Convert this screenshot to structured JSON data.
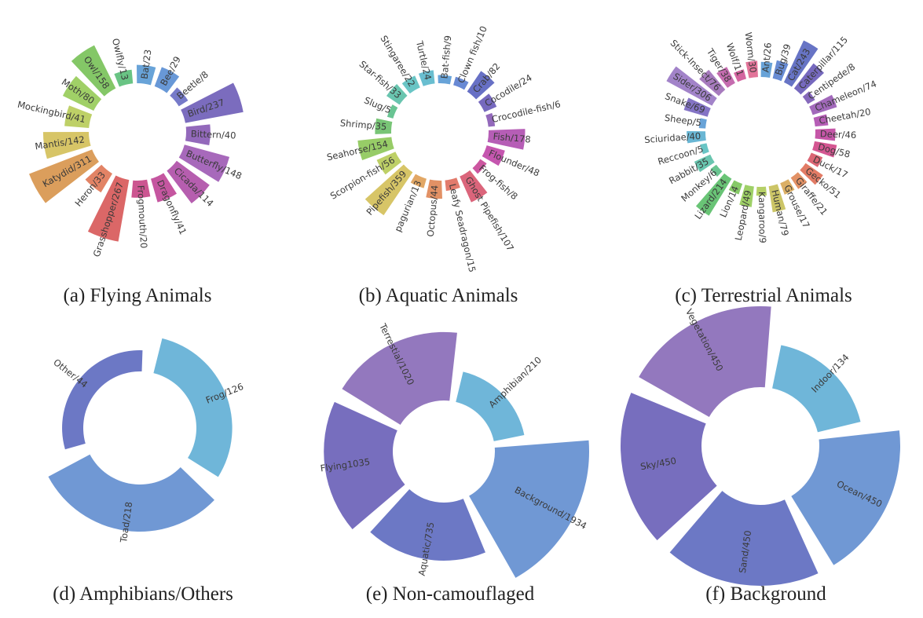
{
  "chart_data": [
    {
      "type": "polar-bar",
      "title": "(a) Flying Animals",
      "categories": [
        "Bat",
        "Bee",
        "Beetle",
        "Bird",
        "Bittern",
        "Butterfly",
        "Cicada",
        "Dragonfly",
        "Frogmouth",
        "Grasshopper",
        "Heron",
        "Katydid",
        "Mantis",
        "Mockingbird",
        "Moth",
        "Owl",
        "Owlfly"
      ],
      "values": [
        23,
        29,
        8,
        237,
        40,
        148,
        114,
        41,
        20,
        267,
        33,
        311,
        142,
        41,
        80,
        158,
        13
      ],
      "labels": [
        "Bat/23",
        "Bee/29",
        "Beetle/8",
        "Bird/237",
        "Bittern/40",
        "Butterfly/148",
        "Cicada/114",
        "Dragonfly/41",
        "Frogmouth/20",
        "Grasshopper/267",
        "Heron/33",
        "Katydid/311",
        "Mantis/142",
        "Mockingbird/41",
        "Moth/80",
        "Owl/158",
        "Owlfly/13"
      ],
      "colors": [
        "#5b9bd5",
        "#5b8fd4",
        "#6a6fc4",
        "#7060b8",
        "#8a5cb5",
        "#a05cb5",
        "#b050a8",
        "#c04898",
        "#c84888",
        "#d85a5a",
        "#e07858",
        "#d8964e",
        "#d4c05a",
        "#b8cc5a",
        "#98cc5a",
        "#7ac25a",
        "#5cbf7a"
      ]
    },
    {
      "type": "polar-bar",
      "title": "(b) Aquatic Animals",
      "categories": [
        "Bat-fish",
        "Clown fish",
        "Crab",
        "Cocodile",
        "Crocodile-fish",
        "Fish",
        "Flounder",
        "Frog-fish",
        "Ghost Pipefish",
        "Leafy Seadragon",
        "Octopus",
        "pagurian",
        "Pipefish",
        "Scorpion-fish",
        "Seahorse",
        "Shrimp",
        "Slug",
        "Star-fish",
        "Stingaree",
        "Turtle"
      ],
      "values": [
        9,
        10,
        82,
        24,
        6,
        178,
        48,
        8,
        107,
        15,
        44,
        13,
        359,
        56,
        154,
        35,
        5,
        33,
        22,
        24
      ],
      "labels": [
        "Bat-fish/9",
        "Clown fish/10",
        "Crab/82",
        "Cocodile/24",
        "Crocodile-fish/6",
        "Fish/178",
        "Flounder/48",
        "Frog-fish/8",
        "Ghost Pipefish/107",
        "Leafy Seadragon/15",
        "Octopus/44",
        "pagurian/13",
        "Pipefish/359",
        "Scorpion-fish/56",
        "Seahorse/154",
        "Shrimp/35",
        "Slug/5",
        "Star-fish/33",
        "Stingaree/22",
        "Turtle/24"
      ],
      "colors": [
        "#5b9bd5",
        "#5b7fd0",
        "#5a64c0",
        "#6a5cb8",
        "#8a5cb5",
        "#b050b0",
        "#c048a8",
        "#c84898",
        "#d85870",
        "#e07060",
        "#e08858",
        "#e0a058",
        "#d4c05a",
        "#b8cc5a",
        "#8ec85a",
        "#6cc06a",
        "#5cbf8a",
        "#5cc0a8",
        "#5cc0c0",
        "#5cb8cc"
      ]
    },
    {
      "type": "polar-bar",
      "title": "(c) Terrestrial Animals",
      "categories": [
        "Ant",
        "Bug",
        "Cat",
        "Caterpillar",
        "Centipede",
        "Chameleon",
        "Cheetah",
        "Deer",
        "Dog",
        "Duck",
        "Gecko",
        "Giraffe",
        "Grouse",
        "Human",
        "Kangaroo",
        "Leopard",
        "Lion",
        "Lizard",
        "Monkey",
        "Rabbit",
        "Reccoon",
        "Sciuridae",
        "Sheep",
        "Snake",
        "Sider",
        "Stick-Insect",
        "Tiger",
        "Wolf",
        "Worm"
      ],
      "values": [
        26,
        39,
        243,
        115,
        8,
        74,
        20,
        46,
        58,
        17,
        51,
        21,
        17,
        79,
        9,
        49,
        14,
        214,
        6,
        35,
        5,
        40,
        5,
        69,
        306,
        76,
        38,
        11,
        30
      ],
      "labels": [
        "Ant/26",
        "Bug/39",
        "Cat/243",
        "Caterpillar/115",
        "Centipede/8",
        "Chameleon/74",
        "Cheetah/20",
        "Deer/46",
        "Dog/58",
        "Duck/17",
        "Gecko/51",
        "Giraffe/21",
        "Grouse/17",
        "Human/79",
        "Kangaroo/9",
        "Leopard/49",
        "Lion/14",
        "Lizard/214",
        "Monkey/6",
        "Rabbit/35",
        "Reccoon/5",
        "Sciuridae/40",
        "Sheep/5",
        "Snake/69",
        "Sider/306",
        "Stick-Insect/76",
        "Tiger/38",
        "Wolf/11",
        "Worm/30"
      ],
      "colors": [
        "#5b9bd5",
        "#5b82d0",
        "#5a68c0",
        "#6a5cb8",
        "#7c5cb5",
        "#9a5cb5",
        "#b050b0",
        "#c048a0",
        "#d04888",
        "#d85868",
        "#e07058",
        "#e08858",
        "#d8a858",
        "#c8c05a",
        "#b0cc5a",
        "#96cc5a",
        "#7cc45a",
        "#5cbf6a",
        "#5cc088",
        "#5cc0a8",
        "#5cc0c0",
        "#5cb0d0",
        "#5b9bd5",
        "#7a68c0",
        "#9a78c4",
        "#a070b8",
        "#c060a8",
        "#d05898",
        "#e06890"
      ]
    },
    {
      "type": "polar-bar",
      "title": "(d) Amphibians/Others",
      "categories": [
        "Frog",
        "Toad",
        "Other"
      ],
      "values": [
        126,
        218,
        44
      ],
      "labels": [
        "Frog/126",
        "Toad/218",
        "Other/44"
      ],
      "colors": [
        "#63b0d6",
        "#648fd0",
        "#5f6cc0"
      ]
    },
    {
      "type": "polar-bar",
      "title": "(e) Non-camouflaged",
      "categories": [
        "Amphibian",
        "Background",
        "Aquatic",
        "Flying",
        "Terrestial"
      ],
      "values": [
        210,
        1934,
        735,
        1035,
        1020
      ],
      "labels": [
        "Amphibian/210",
        "Background/1934",
        "Aquatic/735",
        "Flying1035",
        "Terrestial/1020"
      ],
      "colors": [
        "#63b0d6",
        "#648fd0",
        "#5f6cc0",
        "#6b62b8",
        "#8a6cb8"
      ]
    },
    {
      "type": "polar-bar",
      "title": "(f) Background",
      "categories": [
        "Indoor",
        "Ocean",
        "Sand",
        "Sky",
        "Vegetation"
      ],
      "values": [
        134,
        450,
        450,
        450,
        450
      ],
      "labels": [
        "Indoor/134",
        "Ocean/450",
        "Sand/450",
        "Sky/450",
        "Vegetation/450"
      ],
      "colors": [
        "#63b0d6",
        "#648fd0",
        "#5f6cc0",
        "#6b62b8",
        "#8a6cb8"
      ]
    }
  ]
}
